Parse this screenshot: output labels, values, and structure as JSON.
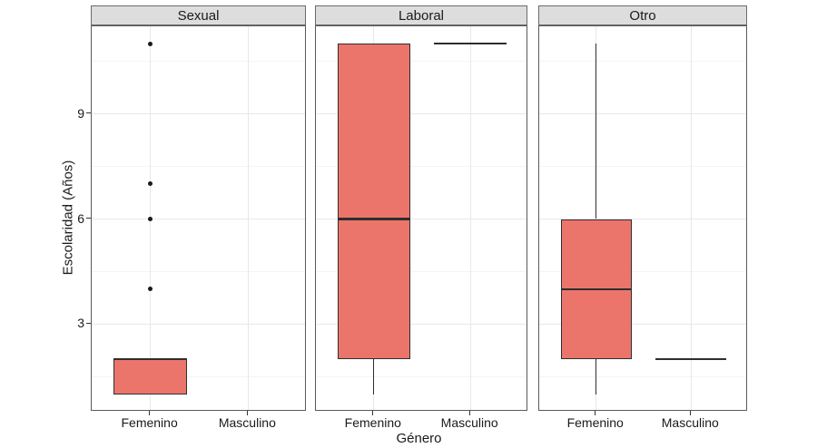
{
  "chart_data": {
    "type": "boxplot",
    "title": "",
    "ylabel": "Escolaridad (Años)",
    "xlabel": "Género",
    "x_categories": [
      "Femenino",
      "Masculino"
    ],
    "y_ticks": [
      3,
      6,
      9
    ],
    "y_minor_gridlines": [
      1.5,
      4.5,
      7.5,
      10.5
    ],
    "ylim": [
      0.5,
      11.5
    ],
    "grid": "horizontal major+minor gridlines; vertical gridline at each category; white panel background (theme_bw style)",
    "legend": "none",
    "facets": [
      {
        "label": "Sexual",
        "groups": [
          {
            "category": "Femenino",
            "q1": 1,
            "median": 2,
            "q3": 2,
            "whisker_low": 1,
            "whisker_high": 2,
            "outliers": [
              4,
              6,
              7,
              11
            ]
          },
          {
            "category": "Masculino",
            "no_data": true,
            "outliers": []
          }
        ]
      },
      {
        "label": "Laboral",
        "groups": [
          {
            "category": "Femenino",
            "q1": 2,
            "median": 6,
            "q3": 11,
            "whisker_low": 1,
            "whisker_high": 11,
            "outliers": []
          },
          {
            "category": "Masculino",
            "q1": 11,
            "median": 11,
            "q3": 11,
            "whisker_low": 11,
            "whisker_high": 11,
            "outliers": []
          }
        ]
      },
      {
        "label": "Otro",
        "groups": [
          {
            "category": "Femenino",
            "q1": 2,
            "median": 4,
            "q3": 6,
            "whisker_low": 1,
            "whisker_high": 11,
            "outliers": []
          },
          {
            "category": "Masculino",
            "q1": 2,
            "median": 2,
            "q3": 2,
            "whisker_low": 2,
            "whisker_high": 2,
            "outliers": []
          }
        ]
      }
    ],
    "colors": {
      "box_fill": "#EC756B",
      "box_stroke": "#2e2e2e",
      "outlier": "#1a1a1a",
      "strip_bg": "#DDDDDD",
      "strip_border": "#6b6b6b",
      "panel_border": "#5a5a5a",
      "grid_major": "#e8e8e8",
      "grid_minor": "#f4f4f4",
      "tick_mark": "#333333",
      "text": "#1a1a1a"
    }
  }
}
